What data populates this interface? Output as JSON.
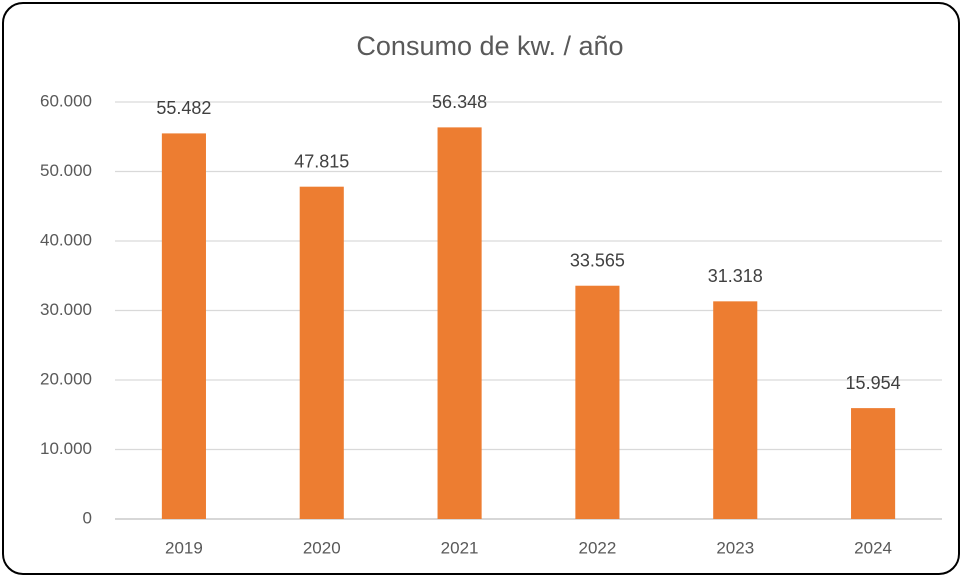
{
  "chart_data": {
    "type": "bar",
    "title": "Consumo de kw. / año",
    "categories": [
      "2019",
      "2020",
      "2021",
      "2022",
      "2023",
      "2024"
    ],
    "values": [
      55482,
      47815,
      56348,
      33565,
      31318,
      15954
    ],
    "value_labels": [
      "55.482",
      "47.815",
      "56.348",
      "33.565",
      "31.318",
      "15.954"
    ],
    "color": "#ed7d31",
    "ylim": [
      0,
      60000
    ],
    "yticks": [
      0,
      {
        "value": 10000,
        "label": "10.000"
      },
      {
        "value": 20000,
        "label": "20.000"
      },
      {
        "value": 30000,
        "label": "30.000"
      },
      {
        "value": 40000,
        "label": "40.000"
      },
      {
        "value": 50000,
        "label": "50.000"
      },
      {
        "value": 60000,
        "label": "60.000"
      }
    ],
    "grid": true
  }
}
